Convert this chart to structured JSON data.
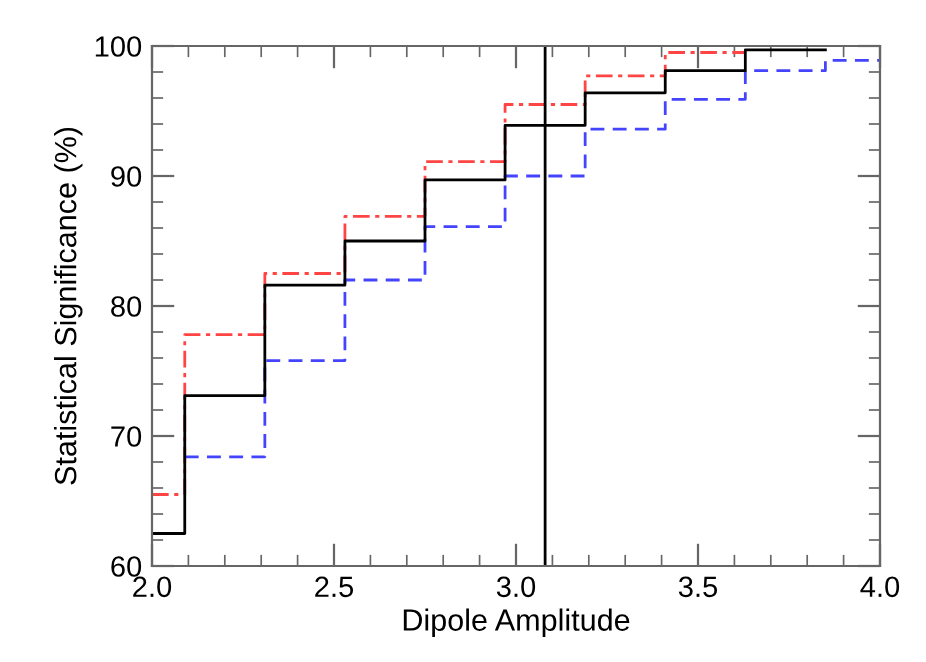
{
  "chart_data": {
    "type": "step",
    "xlabel": "Dipole Amplitude",
    "ylabel": "Statistical Significance (%)",
    "xlim": [
      2.0,
      4.0
    ],
    "ylim": [
      60,
      100
    ],
    "xticks": [
      {
        "value": 2.0,
        "label": "2.0"
      },
      {
        "value": 2.5,
        "label": "2.5"
      },
      {
        "value": 3.0,
        "label": "3.0"
      },
      {
        "value": 3.5,
        "label": "3.5"
      },
      {
        "value": 4.0,
        "label": "4.0"
      }
    ],
    "yticks": [
      60,
      70,
      80,
      90,
      100
    ],
    "grid": false,
    "legend": false,
    "series": [
      {
        "color": "#ff4444",
        "line_style": "dashdot",
        "x": [
          2.0,
          2.09,
          2.31,
          2.53,
          2.75,
          2.97,
          3.19,
          3.41,
          3.63
        ],
        "values": [
          65.5,
          77.8,
          82.5,
          86.9,
          91.1,
          95.5,
          97.7,
          99.5,
          99.5
        ]
      },
      {
        "color": "#4444ff",
        "line_style": "dashed",
        "x": [
          2.09,
          2.31,
          2.53,
          2.75,
          2.97,
          3.19,
          3.41,
          3.63,
          3.85,
          4.0
        ],
        "values": [
          68.4,
          75.8,
          82.0,
          86.1,
          90.0,
          93.6,
          95.9,
          98.1,
          98.9,
          98.9
        ]
      },
      {
        "color": "#000000",
        "line_style": "solid",
        "x": [
          2.0,
          2.09,
          2.31,
          2.53,
          2.75,
          2.97,
          3.19,
          3.41,
          3.63,
          3.85
        ],
        "values": [
          62.5,
          73.1,
          81.6,
          85.0,
          89.7,
          93.9,
          96.4,
          98.1,
          99.7,
          99.7
        ]
      }
    ],
    "ref_lines": [
      {
        "axis": "x",
        "value": 3.08,
        "color": "#000000",
        "line_style": "solid"
      }
    ]
  }
}
